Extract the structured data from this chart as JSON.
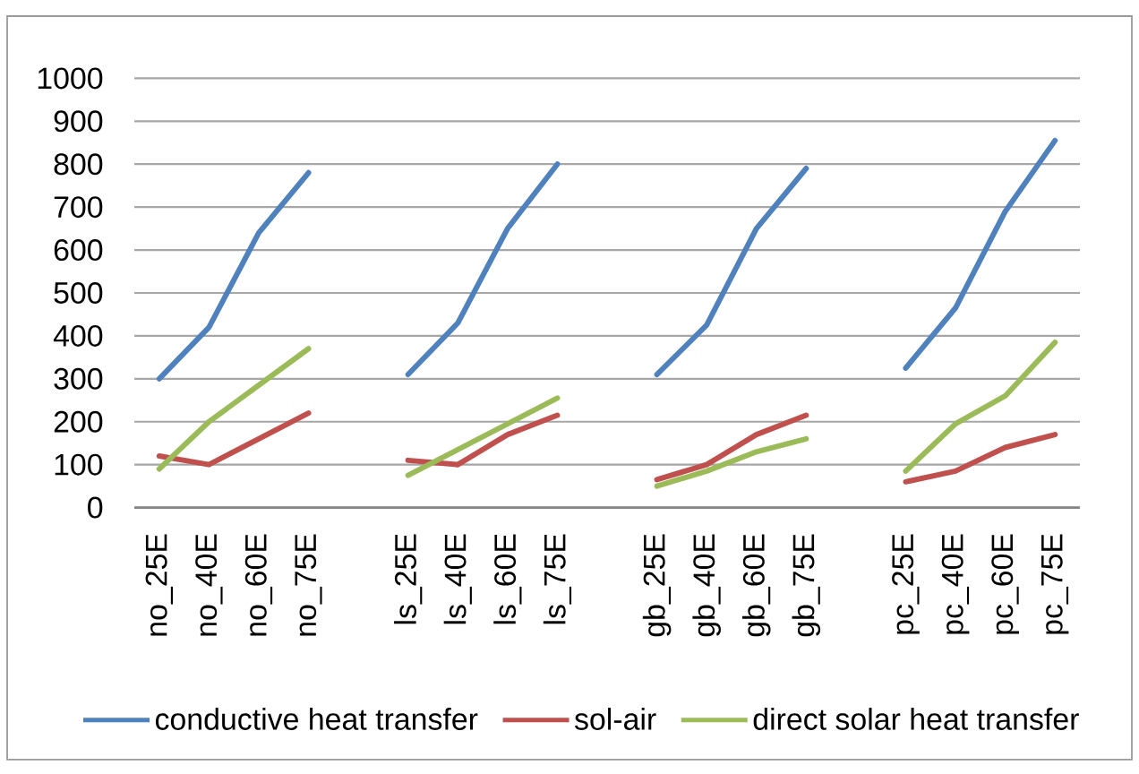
{
  "chart_data": {
    "type": "line",
    "categories": [
      "no_25E",
      "no_40E",
      "no_60E",
      "no_75E",
      null,
      "ls_25E",
      "ls_40E",
      "ls_60E",
      "ls_75E",
      null,
      "gb_25E",
      "gb_40E",
      "gb_60E",
      "gb_75E",
      null,
      "pc_25E",
      "pc_40E",
      "pc_60E",
      "pc_75E"
    ],
    "series": [
      {
        "name": "conductive heat transfer",
        "color": "#4f81bd",
        "values": [
          300,
          420,
          640,
          780,
          null,
          310,
          430,
          650,
          800,
          null,
          310,
          425,
          650,
          790,
          null,
          325,
          465,
          690,
          855
        ]
      },
      {
        "name": "sol-air",
        "color": "#c0504d",
        "values": [
          120,
          100,
          160,
          220,
          null,
          110,
          100,
          170,
          215,
          null,
          65,
          100,
          170,
          215,
          null,
          60,
          85,
          140,
          170
        ]
      },
      {
        "name": "direct solar heat transfer",
        "color": "#9bbb59",
        "values": [
          90,
          200,
          285,
          370,
          null,
          75,
          135,
          195,
          255,
          null,
          50,
          85,
          130,
          160,
          null,
          85,
          195,
          260,
          385
        ]
      }
    ],
    "ylim": [
      0,
      1000
    ],
    "yticks": [
      0,
      100,
      200,
      300,
      400,
      500,
      600,
      700,
      800,
      900,
      1000
    ],
    "grid": "y",
    "legend": "bottom",
    "marker": "none"
  }
}
